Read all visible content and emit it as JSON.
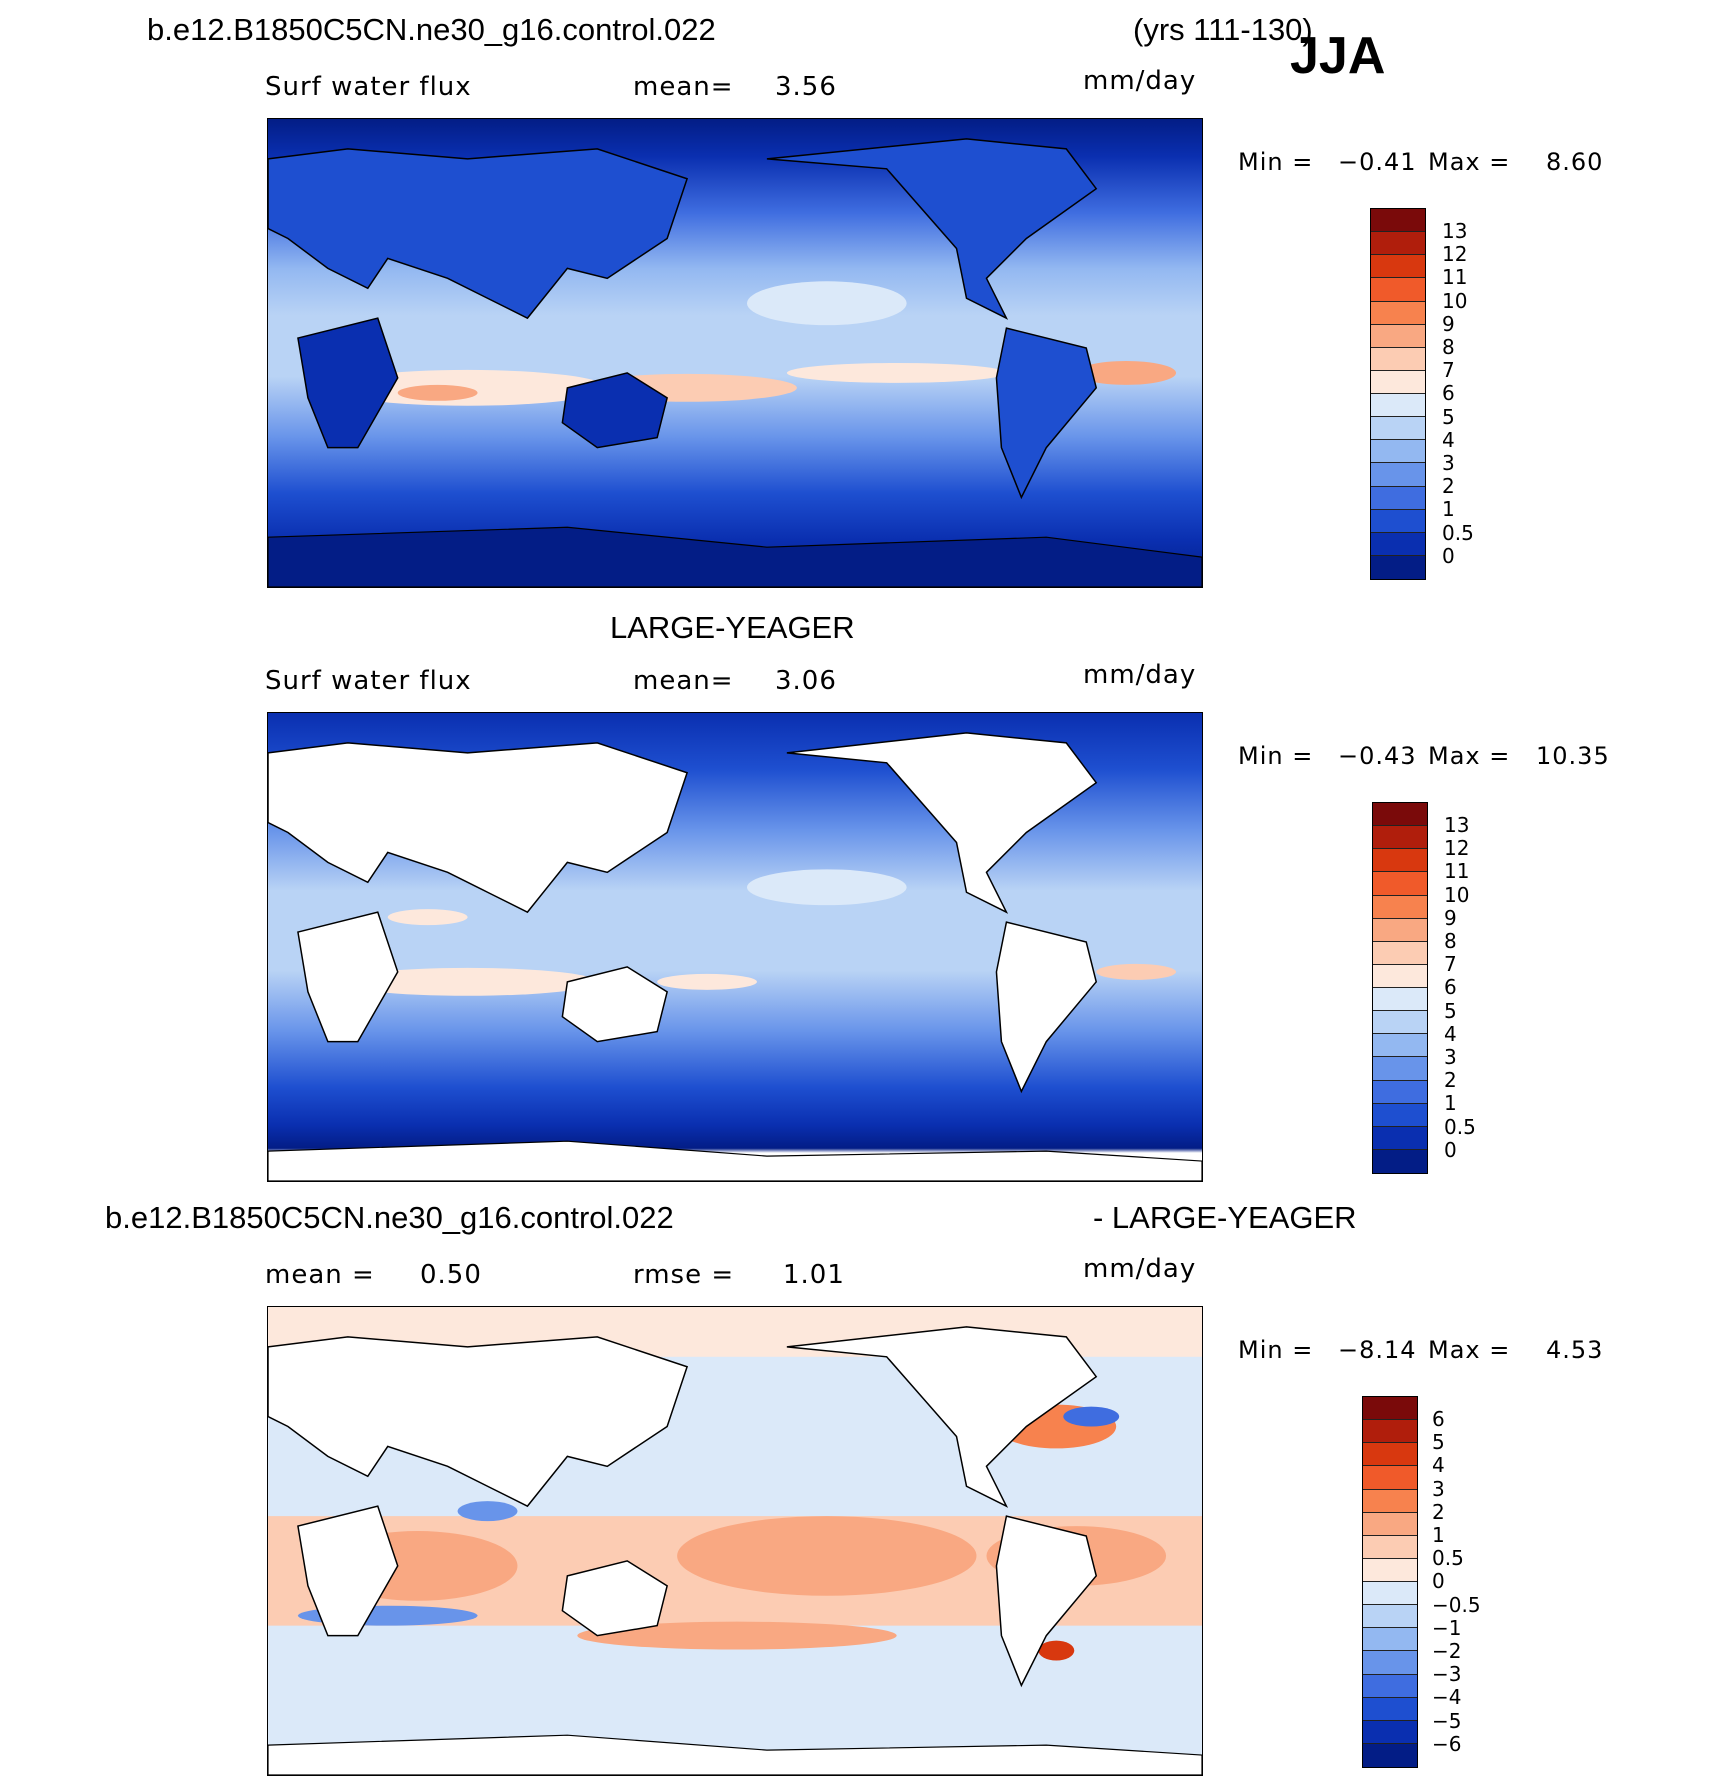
{
  "header": {
    "case_name": "b.e12.B1850C5CN.ne30_g16.control.022",
    "years": "(yrs 111-130)",
    "season": "JJA"
  },
  "panels": [
    {
      "field_label": "Surf  water  flux",
      "stat_label": "mean=",
      "stat_value": "3.56",
      "units": "mm/day",
      "min_label": "Min  =",
      "min_value": "−0.41",
      "max_label": "Max  =",
      "max_value": "8.60",
      "colorbar_labels": [
        "13",
        "12",
        "11",
        "10",
        "9",
        "8",
        "7",
        "6",
        "5",
        "4",
        "3",
        "2",
        "1",
        "0.5",
        "0"
      ]
    },
    {
      "title": "LARGE-YEAGER",
      "field_label": "Surf  water  flux",
      "stat_label": "mean=",
      "stat_value": "3.06",
      "units": "mm/day",
      "min_label": "Min  =",
      "min_value": "−0.43",
      "max_label": "Max  =",
      "max_value": "10.35",
      "colorbar_labels": [
        "13",
        "12",
        "11",
        "10",
        "9",
        "8",
        "7",
        "6",
        "5",
        "4",
        "3",
        "2",
        "1",
        "0.5",
        "0"
      ]
    },
    {
      "title_left": "b.e12.B1850C5CN.ne30_g16.control.022",
      "title_right": "- LARGE-YEAGER",
      "stat_label": "mean  =",
      "stat_value": "0.50",
      "stat2_label": "rmse  =",
      "stat2_value": "1.01",
      "units": "mm/day",
      "min_label": "Min  =",
      "min_value": "−8.14",
      "max_label": "Max  =",
      "max_value": "4.53",
      "colorbar_labels": [
        "6",
        "5",
        "4",
        "3",
        "2",
        "1",
        "0.5",
        "0",
        "−0.5",
        "−1",
        "−2",
        "−3",
        "−4",
        "−5",
        "−6"
      ]
    }
  ],
  "colors": {
    "abs_scale": [
      "#7a0a0a",
      "#b01e0c",
      "#d8380f",
      "#f05a2a",
      "#f7824e",
      "#f9a882",
      "#fcccb3",
      "#fde8dc",
      "#dbe9f9",
      "#b9d3f5",
      "#93b8f1",
      "#6894ea",
      "#3f6de0",
      "#1e4fd0",
      "#0a2fb0",
      "#031d86"
    ],
    "diff_scale": [
      "#7a0a0a",
      "#b01e0c",
      "#d8380f",
      "#f05a2a",
      "#f7824e",
      "#f9a882",
      "#fcccb3",
      "#fde8dc",
      "#dbe9f9",
      "#b9d3f5",
      "#93b8f1",
      "#6894ea",
      "#3f6de0",
      "#1e4fd0",
      "#0a2fb0",
      "#031d86"
    ],
    "land_mask": "#ffffff"
  }
}
